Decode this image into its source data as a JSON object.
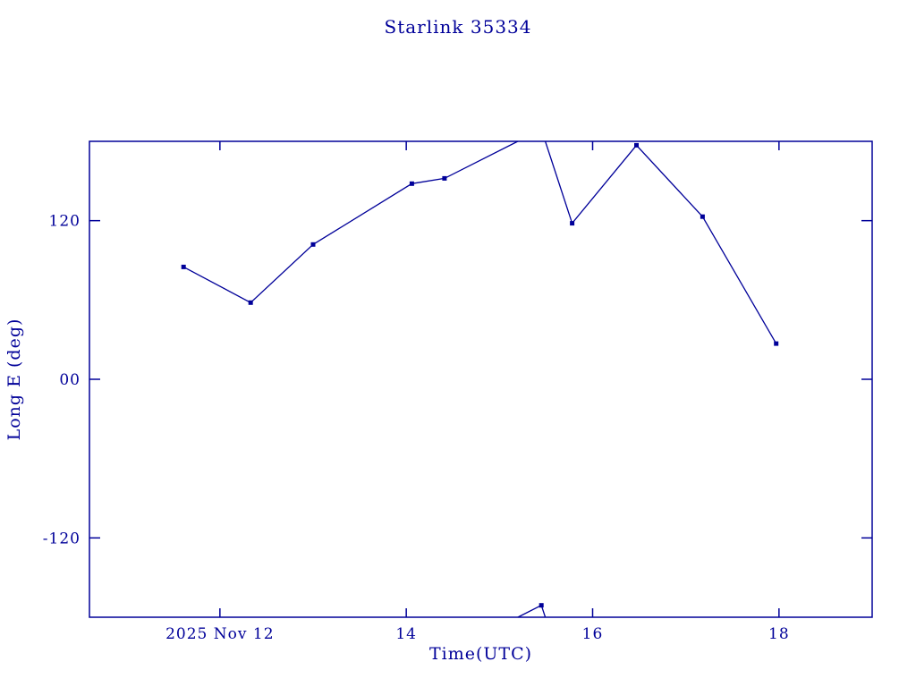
{
  "colors": {
    "accent": "#000099",
    "background": "#ffffff"
  },
  "chart_data": {
    "type": "line",
    "title": "Starlink 35334",
    "xlabel": "Time(UTC)",
    "ylabel": "Long E (deg)",
    "x_unit": "day of 2025 Nov (UTC)",
    "xlim": [
      10.6,
      19.0
    ],
    "ylim": [
      -180,
      180
    ],
    "grid": false,
    "legend": null,
    "wrap_at_deg": 180,
    "x_ticks": [
      {
        "value": 12,
        "label": "2025 Nov 12"
      },
      {
        "value": 14,
        "label": "14"
      },
      {
        "value": 16,
        "label": "16"
      },
      {
        "value": 18,
        "label": "18"
      }
    ],
    "y_ticks": [
      {
        "value": 120,
        "label": "120"
      },
      {
        "value": 0,
        "label": "00"
      },
      {
        "value": -120,
        "label": "-120"
      }
    ],
    "series": [
      {
        "name": "Long E",
        "marker": "square",
        "x": [
          11.61,
          12.33,
          13.0,
          14.06,
          14.41,
          15.45,
          15.78,
          16.47,
          17.18,
          17.97
        ],
        "y": [
          85,
          58,
          102,
          148,
          152,
          -171,
          118,
          177,
          123,
          27
        ]
      }
    ]
  }
}
